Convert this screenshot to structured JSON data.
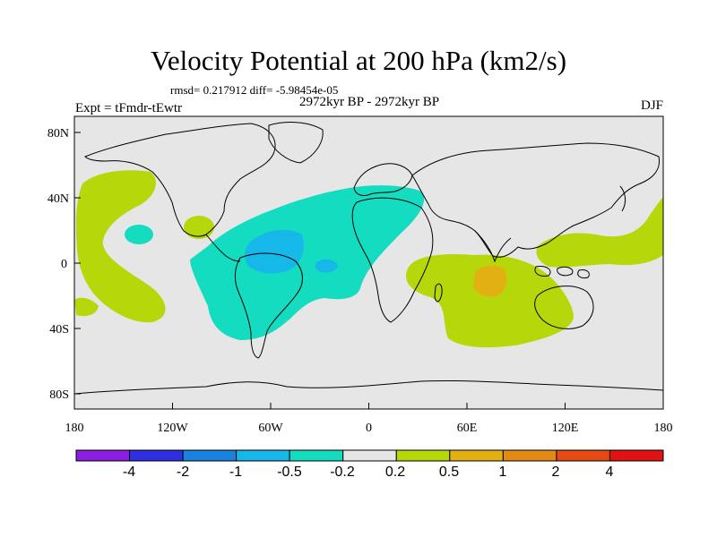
{
  "title": "Velocity Potential at 200 hPa (km2/s)",
  "stats": "rmsd= 0.217912 diff= -5.98454e-05",
  "subtitle": "2972kyr BP - 2972kyr BP",
  "left_label": "Expt = tFmdr-tEwtr",
  "right_label": "DJF",
  "axes": {
    "x_ticks": [
      "180",
      "120W",
      "60W",
      "0",
      "60E",
      "120E",
      "180"
    ],
    "y_ticks": [
      "80N",
      "40N",
      "0",
      "40S",
      "80S"
    ]
  },
  "colorbar": {
    "labels": [
      "-4",
      "-2",
      "-1",
      "-0.5",
      "-0.2",
      "0.2",
      "0.5",
      "1",
      "2",
      "4"
    ],
    "colors": [
      "#8b1fe0",
      "#2f2ee0",
      "#1a82de",
      "#15b8e8",
      "#14dcc0",
      "#e6e6e6",
      "#b6d80a",
      "#e2b012",
      "#e38a14",
      "#e54a12",
      "#e01214"
    ]
  },
  "colors": {
    "background": "#e6e6e6",
    "positive_low": "#b6d80a",
    "positive_mid": "#e2b012",
    "negative_low": "#14dcc0",
    "negative_mid": "#15b8e8"
  }
}
